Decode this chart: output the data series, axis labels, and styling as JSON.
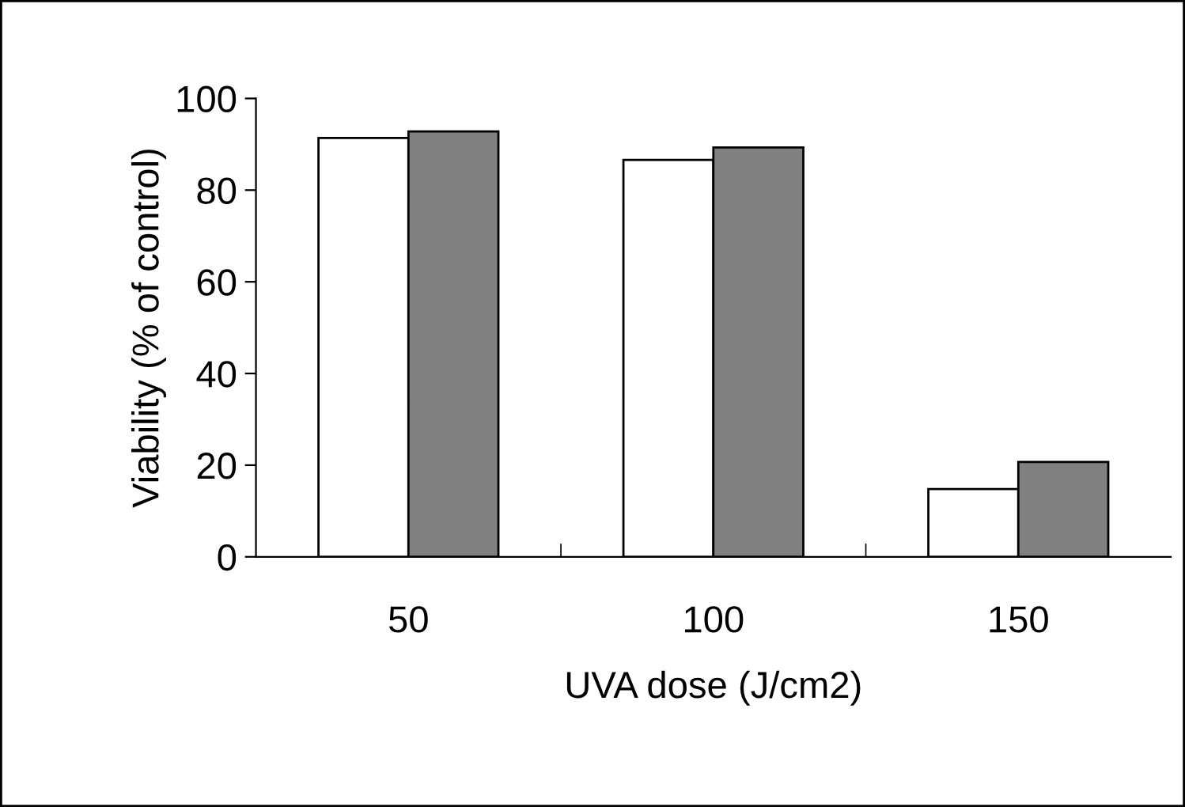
{
  "chart_data": {
    "type": "bar",
    "xlabel": "UVA dose (J/cm2)",
    "ylabel": "Viability (% of control)",
    "categories": [
      "50",
      "100",
      "150"
    ],
    "series": [
      {
        "color": "#ffffff",
        "values": [
          91.4,
          86.6,
          14.8
        ]
      },
      {
        "color": "#808080",
        "values": [
          92.8,
          89.3,
          20.7
        ]
      }
    ],
    "ylim": [
      0,
      100
    ],
    "yticks": [
      0,
      20,
      40,
      60,
      80,
      100
    ],
    "grid": false,
    "legend": false
  }
}
